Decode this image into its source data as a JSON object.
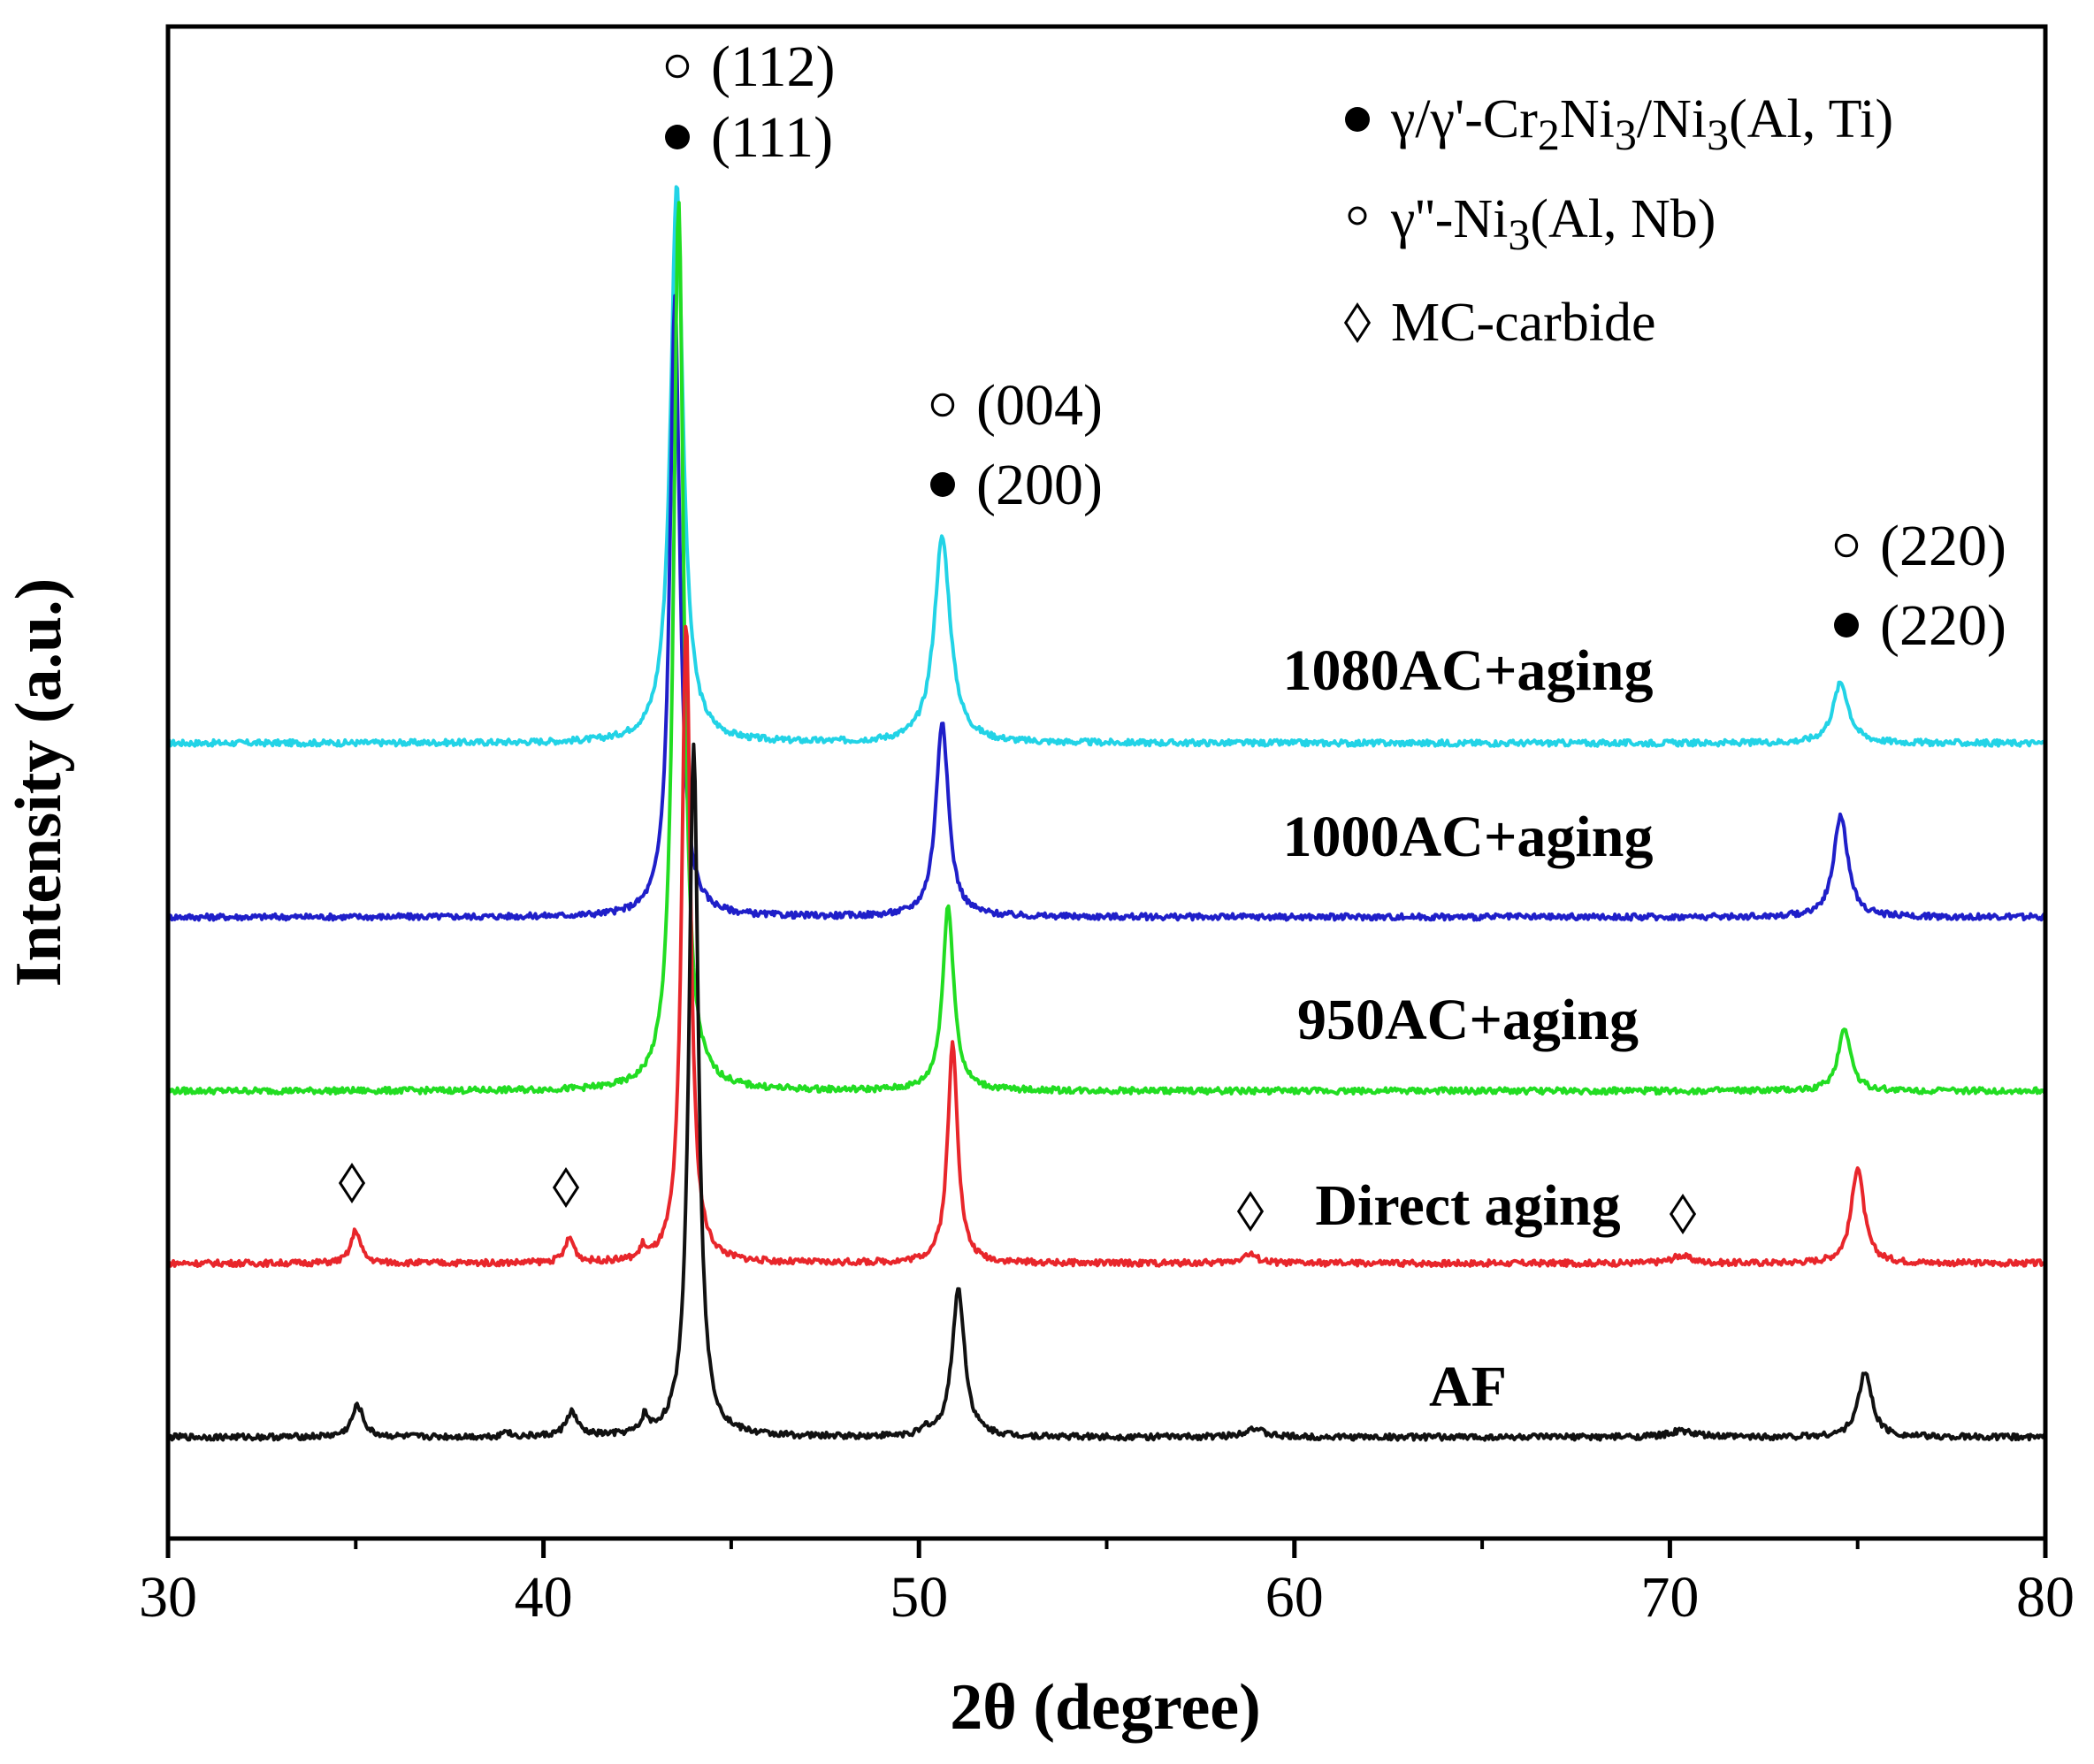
{
  "chart_data": {
    "type": "line",
    "title": "",
    "xlabel": "2θ (degree)",
    "ylabel": "Intensity (a.u.)",
    "xlim": [
      30,
      80
    ],
    "ylim": [
      0,
      1
    ],
    "xticks": [
      "30",
      "40",
      "50",
      "60",
      "70",
      "80"
    ],
    "series": [
      {
        "name": "1080AC+aging",
        "label": "1080AC+aging",
        "color": "#22d3e6",
        "baseline": 0.526,
        "peaks": [
          {
            "x": 43.55,
            "height": 0.37,
            "width": 0.2
          },
          {
            "x": 50.62,
            "height": 0.136,
            "width": 0.26
          },
          {
            "x": 74.55,
            "height": 0.04,
            "width": 0.25
          }
        ]
      },
      {
        "name": "1000AC+aging",
        "label": "1000AC+aging",
        "color": "#1f1fc9",
        "baseline": 0.411,
        "peaks": [
          {
            "x": 43.5,
            "height": 0.41,
            "width": 0.16
          },
          {
            "x": 50.62,
            "height": 0.13,
            "width": 0.2
          },
          {
            "x": 74.55,
            "height": 0.068,
            "width": 0.22
          }
        ]
      },
      {
        "name": "950AC+aging",
        "label": "950AC+aging",
        "color": "#22dd22",
        "baseline": 0.296,
        "peaks": [
          {
            "x": 43.6,
            "height": 0.59,
            "width": 0.16
          },
          {
            "x": 50.78,
            "height": 0.122,
            "width": 0.18
          },
          {
            "x": 74.65,
            "height": 0.042,
            "width": 0.2
          }
        ]
      },
      {
        "name": "Direct aging",
        "label": "Direct aging",
        "color": "#e8262b",
        "baseline": 0.182,
        "peaks": [
          {
            "x": 35.0,
            "height": 0.022,
            "width": 0.15
          },
          {
            "x": 40.7,
            "height": 0.016,
            "width": 0.15
          },
          {
            "x": 42.65,
            "height": 0.008,
            "width": 0.08
          },
          {
            "x": 43.8,
            "height": 0.425,
            "width": 0.14
          },
          {
            "x": 50.9,
            "height": 0.146,
            "width": 0.16
          },
          {
            "x": 58.8,
            "height": 0.006,
            "width": 0.25
          },
          {
            "x": 70.3,
            "height": 0.005,
            "width": 0.3
          },
          {
            "x": 75.0,
            "height": 0.064,
            "width": 0.2
          }
        ]
      },
      {
        "name": "AF",
        "label": "AF",
        "color": "#111111",
        "baseline": 0.067,
        "peaks": [
          {
            "x": 35.05,
            "height": 0.021,
            "width": 0.18
          },
          {
            "x": 39.0,
            "height": 0.005,
            "width": 0.08
          },
          {
            "x": 40.75,
            "height": 0.016,
            "width": 0.18
          },
          {
            "x": 42.7,
            "height": 0.011,
            "width": 0.1
          },
          {
            "x": 44.0,
            "height": 0.46,
            "width": 0.15
          },
          {
            "x": 50.2,
            "height": 0.004,
            "width": 0.1
          },
          {
            "x": 51.05,
            "height": 0.098,
            "width": 0.2
          },
          {
            "x": 58.9,
            "height": 0.006,
            "width": 0.3
          },
          {
            "x": 70.3,
            "height": 0.004,
            "width": 0.4
          },
          {
            "x": 75.2,
            "height": 0.043,
            "width": 0.22
          }
        ]
      }
    ],
    "peak_annotations": [
      {
        "x": 43.6,
        "symbol": "open-circle",
        "text": "(112)"
      },
      {
        "x": 43.6,
        "symbol": "filled-circle",
        "text": "(111)"
      },
      {
        "x": 50.7,
        "symbol": "open-circle",
        "text": "(004)"
      },
      {
        "x": 50.7,
        "symbol": "filled-circle",
        "text": "(200)"
      },
      {
        "x": 74.6,
        "symbol": "open-circle",
        "text": "(220)"
      },
      {
        "x": 74.6,
        "symbol": "filled-circle",
        "text": "(220)"
      }
    ],
    "carbide_markers": [
      {
        "x": 35.0,
        "symbol": "diamond"
      },
      {
        "x": 40.7,
        "symbol": "diamond"
      },
      {
        "x": 58.8,
        "symbol": "diamond"
      },
      {
        "x": 70.3,
        "symbol": "diamond"
      }
    ],
    "legend": {
      "position": "top-right",
      "items": [
        {
          "symbol": "filled-circle",
          "pre": "γ/γ'-Cr",
          "sub1": "2",
          "mid": "Ni",
          "sub2": "3",
          "mid2": "/Ni",
          "sub3": "3",
          "post": "(Al, Ti)"
        },
        {
          "symbol": "open-circle",
          "pre": "γ''-Ni",
          "sub1": "3",
          "post": "(Al, Nb)"
        },
        {
          "symbol": "diamond",
          "pre": "MC-carbide"
        }
      ]
    },
    "diamond_glyph": "◊"
  }
}
